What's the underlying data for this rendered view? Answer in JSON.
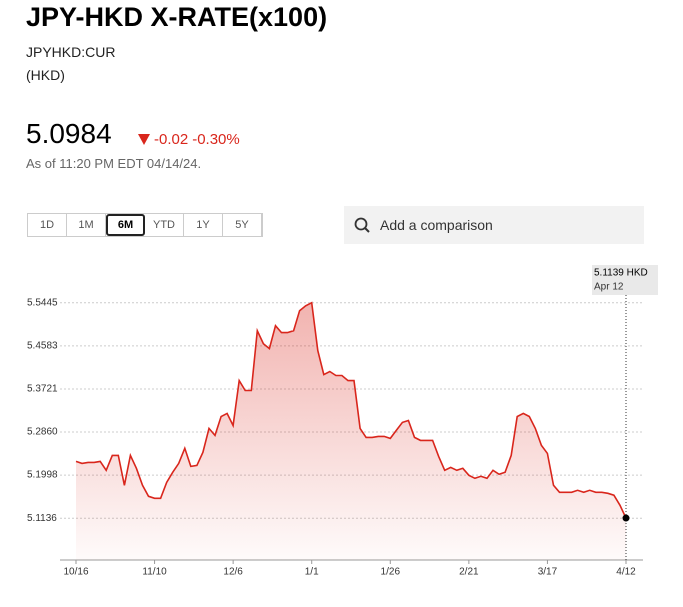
{
  "header": {
    "title": "JPY-HKD X-RATE(x100)",
    "symbol": "JPYHKD:CUR",
    "currency": "(HKD)",
    "price": "5.0984",
    "change": "-0.02",
    "change_pct": "-0.30%",
    "as_of": "As of 11:20 PM EDT 04/14/24."
  },
  "range_buttons": [
    "1D",
    "1M",
    "6M",
    "YTD",
    "1Y",
    "5Y"
  ],
  "selected_range": 2,
  "search": {
    "placeholder": "Add a comparison"
  },
  "chart_data": {
    "type": "area",
    "color": "#d9261c",
    "categories": [
      "10/16",
      null,
      null,
      null,
      null,
      null,
      null,
      null,
      null,
      null,
      null,
      null,
      null,
      "11/10",
      null,
      null,
      null,
      null,
      null,
      null,
      null,
      null,
      null,
      null,
      null,
      null,
      "12/6",
      null,
      null,
      null,
      null,
      null,
      null,
      null,
      null,
      null,
      null,
      null,
      null,
      "1/1",
      null,
      null,
      null,
      null,
      null,
      null,
      null,
      null,
      null,
      null,
      null,
      null,
      "1/26",
      null,
      null,
      null,
      null,
      null,
      null,
      null,
      null,
      null,
      null,
      null,
      null,
      "2/21",
      null,
      null,
      null,
      null,
      null,
      null,
      null,
      null,
      null,
      null,
      null,
      null,
      "3/17",
      null,
      null,
      null,
      null,
      null,
      null,
      null,
      null,
      null,
      null,
      null,
      null,
      "4/12"
    ],
    "values": [
      5.2273,
      5.2233,
      5.2253,
      5.2253,
      5.2273,
      5.2094,
      5.2393,
      5.2393,
      5.1794,
      5.2393,
      5.2134,
      5.1794,
      5.1575,
      5.1535,
      5.1535,
      5.1854,
      5.2054,
      5.2233,
      5.2533,
      5.2173,
      5.2193,
      5.2453,
      5.2932,
      5.2792,
      5.3171,
      5.3231,
      5.2991,
      5.3889,
      5.369,
      5.369,
      5.4887,
      5.4627,
      5.4528,
      5.4986,
      5.4847,
      5.4847,
      5.4887,
      5.5286,
      5.5385,
      5.5445,
      5.4488,
      5.4009,
      5.4069,
      5.3989,
      5.3989,
      5.3889,
      5.3889,
      5.2932,
      5.2752,
      5.2752,
      5.2772,
      5.2772,
      5.2732,
      5.2892,
      5.3051,
      5.3091,
      5.2752,
      5.2692,
      5.2692,
      5.2692,
      5.2373,
      5.2094,
      5.2153,
      5.2094,
      5.2134,
      5.1994,
      5.1934,
      5.1974,
      5.1934,
      5.2094,
      5.2014,
      5.2054,
      5.2393,
      5.3171,
      5.3231,
      5.3171,
      5.2932,
      5.2592,
      5.2433,
      5.1794,
      5.1655,
      5.1655,
      5.1655,
      5.1695,
      5.1655,
      5.1695,
      5.1655,
      5.1655,
      5.1635,
      5.1595,
      5.1395,
      5.1139
    ],
    "ylim": [
      5.03,
      5.62
    ],
    "yticks": [
      5.1136,
      5.1998,
      {
        "value": 5.286,
        "label": "5.2860"
      },
      5.3721,
      5.4583,
      5.5445
    ],
    "grid": true,
    "tooltip": {
      "value_label": "5.1139 HKD",
      "date": "Apr 12"
    }
  }
}
